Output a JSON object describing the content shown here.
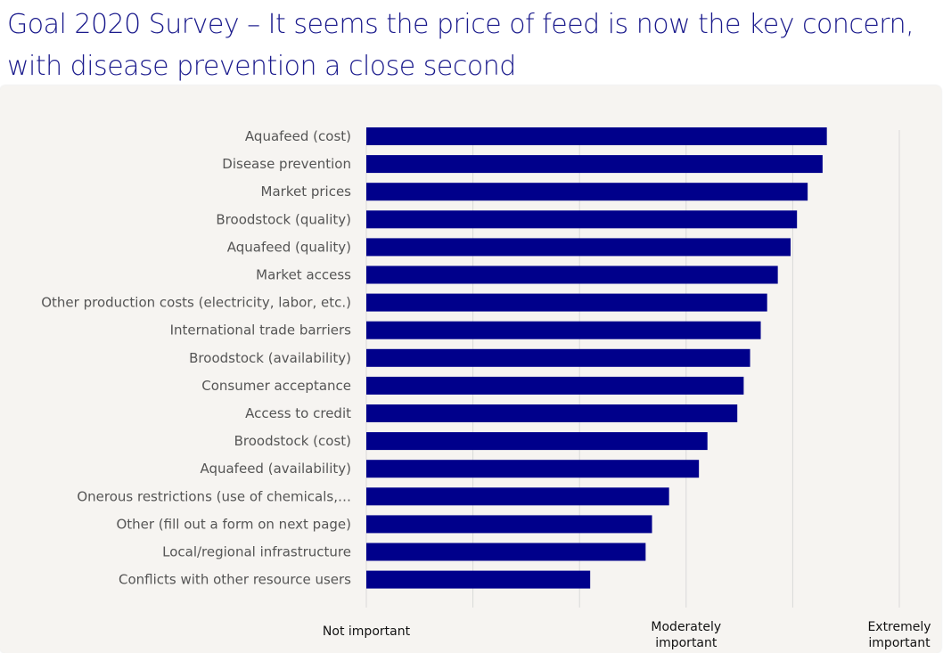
{
  "title": "Goal 2020 Survey –  It seems the price of feed is now the key concern, with disease prevention a close second",
  "colors": {
    "bar": "#00008b",
    "title": "#1a1a8c",
    "grid": "#d9d9d9",
    "panel": "#f6f4f1"
  },
  "chart_data": {
    "type": "bar",
    "orientation": "horizontal",
    "title": "",
    "xlabel": "",
    "ylabel": "",
    "categories": [
      "Aquafeed (cost)",
      "Disease prevention",
      "Market prices",
      "Broodstock (quality)",
      "Aquafeed (quality)",
      "Market access",
      "Other production costs (electricity, labor, etc.)",
      "International trade barriers",
      "Broodstock (availability)",
      "Consumer acceptance",
      "Access to credit",
      "Broodstock (cost)",
      "Aquafeed (availability)",
      "Onerous restrictions (use of chemicals,…",
      "Other (fill out a form on next page)",
      "Local/regional infrastructure",
      "Conflicts with other resource users"
    ],
    "values": [
      4.66,
      4.64,
      4.57,
      4.52,
      4.49,
      4.43,
      4.38,
      4.35,
      4.3,
      4.27,
      4.24,
      4.1,
      4.06,
      3.92,
      3.84,
      3.81,
      3.55
    ],
    "xlim": [
      2.5,
      5.0
    ],
    "tick_positions": [
      2.5,
      3.0,
      3.5,
      4.0,
      4.5,
      5.0
    ],
    "tick_labels": [
      {
        "value": 2.5,
        "lines": [
          "Not important"
        ]
      },
      {
        "value": 4.0,
        "lines": [
          "Moderately",
          "important"
        ]
      },
      {
        "value": 5.0,
        "lines": [
          "Extremely",
          "important"
        ]
      }
    ],
    "grid": true,
    "legend": "none"
  }
}
